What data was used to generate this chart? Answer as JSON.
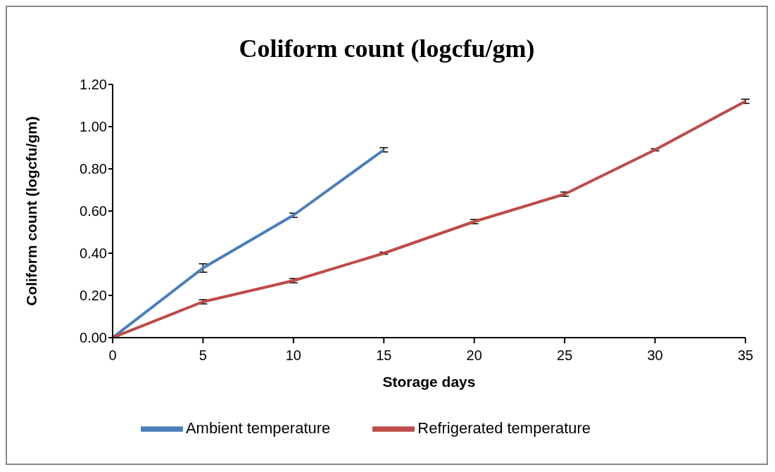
{
  "chart_data": {
    "type": "line",
    "title": "Coliform count (logcfu/gm)",
    "xlabel": "Storage days",
    "ylabel": "Coliform count (logcfu/gm)",
    "x": [
      0,
      5,
      10,
      15,
      20,
      25,
      30,
      35
    ],
    "series": [
      {
        "name": "Ambient temperature",
        "color": "#4a7ebb",
        "values": [
          0,
          0.33,
          0.58,
          0.89,
          null,
          null,
          null,
          null
        ],
        "errors": [
          null,
          0.02,
          0.01,
          0.01,
          null,
          null,
          null,
          null
        ]
      },
      {
        "name": "Refrigerated temperature",
        "color": "#be4b48",
        "values": [
          0,
          0.17,
          0.27,
          0.4,
          0.55,
          0.68,
          0.89,
          1.12
        ],
        "errors": [
          null,
          0.01,
          0.01,
          0.005,
          0.01,
          0.01,
          0.005,
          0.01
        ]
      }
    ],
    "xlim": [
      0,
      35
    ],
    "xticks": [
      0,
      5,
      10,
      15,
      20,
      25,
      30,
      35
    ],
    "ylim": [
      0,
      1.2
    ],
    "yticks": [
      {
        "value": 0,
        "label": "0.00"
      },
      {
        "value": 0.2,
        "label": "0.20"
      },
      {
        "value": 0.4,
        "label": "0.40"
      },
      {
        "value": 0.6,
        "label": "0.60"
      },
      {
        "value": 0.8,
        "label": "0.80"
      },
      {
        "value": 1,
        "label": "1.00"
      },
      {
        "value": 1.2,
        "label": "1.20"
      }
    ],
    "grid": false,
    "legend": "bottom",
    "marker": "none",
    "line_style": "solid"
  }
}
